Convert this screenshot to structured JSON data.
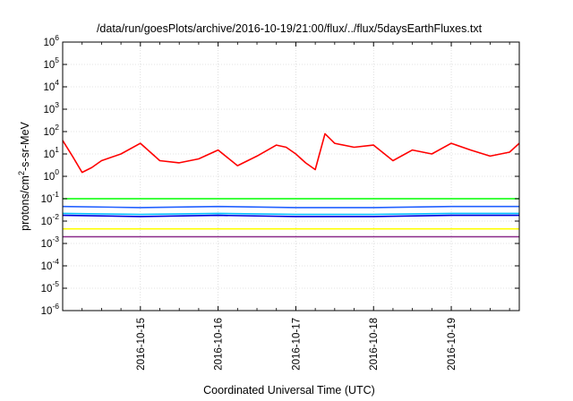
{
  "chart_data": {
    "type": "line",
    "title": "/data/run/goesPlots/archive/2016-10-19/21:00/flux/../flux/5daysEarthFluxes.txt",
    "xlabel": "Coordinated Universal Time (UTC)",
    "ylabel": "protons/cm²-s-sr-MeV",
    "y_scale": "log",
    "ylim": [
      1e-06,
      1000000.0
    ],
    "y_ticks": [
      {
        "exp": -6
      },
      {
        "exp": -5
      },
      {
        "exp": -4
      },
      {
        "exp": -3
      },
      {
        "exp": -2
      },
      {
        "exp": -1
      },
      {
        "exp": 0
      },
      {
        "exp": 1
      },
      {
        "exp": 2
      },
      {
        "exp": 3
      },
      {
        "exp": 4
      },
      {
        "exp": 5
      },
      {
        "exp": 6
      }
    ],
    "xlim": [
      "2016-10-14T00:00",
      "2016-10-19T21:00"
    ],
    "x_tick_labels": [
      "2016-10-15",
      "2016-10-16",
      "2016-10-17",
      "2016-10-18",
      "2016-10-19"
    ],
    "grid": true,
    "legend": "none",
    "series": [
      {
        "color": "#ff0000",
        "x": [
          "2016-10-14T00:00",
          "2016-10-14T03:00",
          "2016-10-14T06:00",
          "2016-10-14T09:00",
          "2016-10-14T12:00",
          "2016-10-14T18:00",
          "2016-10-15T00:00",
          "2016-10-15T06:00",
          "2016-10-15T12:00",
          "2016-10-15T18:00",
          "2016-10-16T00:00",
          "2016-10-16T06:00",
          "2016-10-16T12:00",
          "2016-10-16T18:00",
          "2016-10-16T21:00",
          "2016-10-17T00:00",
          "2016-10-17T03:00",
          "2016-10-17T06:00",
          "2016-10-17T09:00",
          "2016-10-17T12:00",
          "2016-10-17T18:00",
          "2016-10-18T00:00",
          "2016-10-18T06:00",
          "2016-10-18T12:00",
          "2016-10-18T18:00",
          "2016-10-19T00:00",
          "2016-10-19T06:00",
          "2016-10-19T12:00",
          "2016-10-19T18:00",
          "2016-10-19T21:00"
        ],
        "values": [
          40,
          8,
          1.5,
          2.5,
          5,
          10,
          30,
          5,
          4,
          6,
          15,
          3,
          8,
          25,
          20,
          10,
          4,
          2,
          80,
          30,
          20,
          25,
          5,
          15,
          10,
          30,
          15,
          8,
          12,
          30
        ]
      },
      {
        "color": "#00ff00",
        "x": [
          "2016-10-14T00:00",
          "2016-10-15T00:00",
          "2016-10-16T00:00",
          "2016-10-17T00:00",
          "2016-10-18T00:00",
          "2016-10-19T00:00",
          "2016-10-19T21:00"
        ],
        "values": [
          0.1,
          0.1,
          0.1,
          0.1,
          0.1,
          0.1,
          0.1
        ]
      },
      {
        "color": "#2060ff",
        "x": [
          "2016-10-14T00:00",
          "2016-10-15T00:00",
          "2016-10-16T00:00",
          "2016-10-17T00:00",
          "2016-10-18T00:00",
          "2016-10-19T00:00",
          "2016-10-19T21:00"
        ],
        "values": [
          0.045,
          0.04,
          0.045,
          0.04,
          0.04,
          0.045,
          0.045
        ]
      },
      {
        "color": "#00c0ff",
        "x": [
          "2016-10-14T00:00",
          "2016-10-15T00:00",
          "2016-10-16T00:00",
          "2016-10-17T00:00",
          "2016-10-18T00:00",
          "2016-10-19T00:00",
          "2016-10-19T21:00"
        ],
        "values": [
          0.022,
          0.02,
          0.022,
          0.02,
          0.02,
          0.022,
          0.022
        ]
      },
      {
        "color": "#0000dd",
        "x": [
          "2016-10-14T00:00",
          "2016-10-15T00:00",
          "2016-10-16T00:00",
          "2016-10-17T00:00",
          "2016-10-18T00:00",
          "2016-10-19T00:00",
          "2016-10-19T21:00"
        ],
        "values": [
          0.018,
          0.016,
          0.018,
          0.016,
          0.016,
          0.018,
          0.018
        ]
      },
      {
        "color": "#ffff00",
        "x": [
          "2016-10-14T00:00",
          "2016-10-15T00:00",
          "2016-10-16T00:00",
          "2016-10-17T00:00",
          "2016-10-18T00:00",
          "2016-10-19T00:00",
          "2016-10-19T21:00"
        ],
        "values": [
          0.0045,
          0.0045,
          0.0045,
          0.0045,
          0.0045,
          0.0045,
          0.0045
        ]
      },
      {
        "color": "#8b2a8b",
        "x": [
          "2016-10-14T00:00",
          "2016-10-15T00:00",
          "2016-10-16T00:00",
          "2016-10-17T00:00",
          "2016-10-18T00:00",
          "2016-10-19T00:00",
          "2016-10-19T21:00"
        ],
        "values": [
          0.002,
          0.002,
          0.002,
          0.002,
          0.002,
          0.002,
          0.002
        ]
      }
    ]
  }
}
